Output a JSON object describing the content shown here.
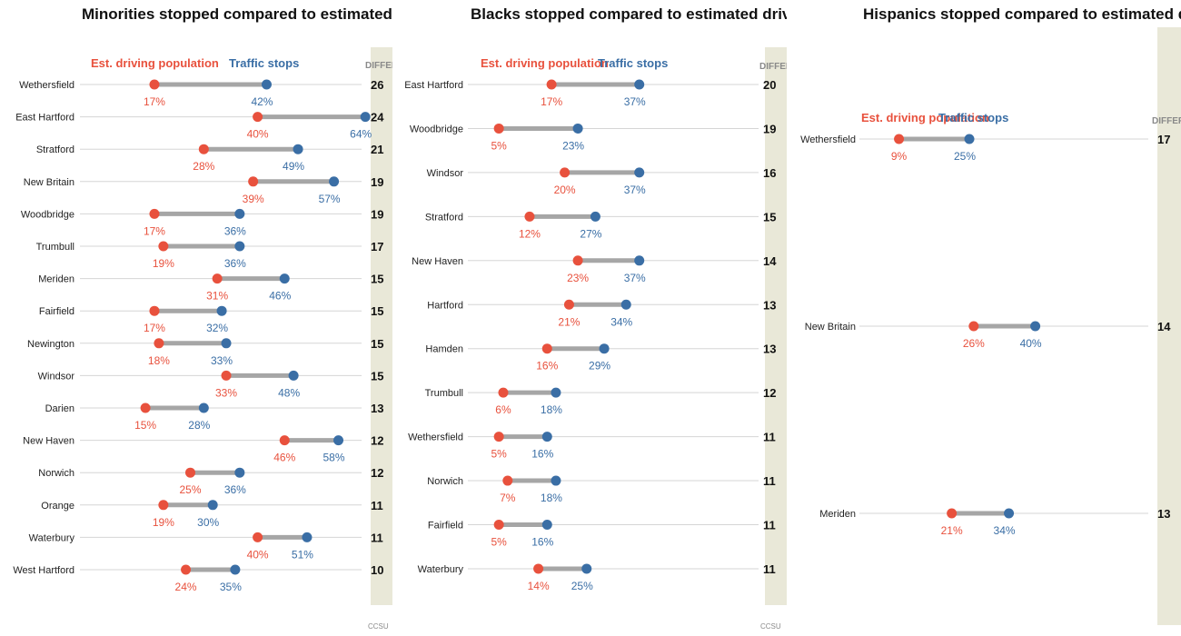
{
  "chart_data": [
    {
      "type": "dumbbell",
      "title": "Minorities stopped compared to estimated driving population",
      "series": [
        {
          "name": "Est. driving population",
          "color": "#e8513d"
        },
        {
          "name": "Traffic stops",
          "color": "#3a6ea5"
        }
      ],
      "difference_header": "DIFFERENCE",
      "source": "CCSU",
      "categories": [
        "Wethersfield",
        "East Hartford",
        "Stratford",
        "New Britain",
        "Woodbridge",
        "Trumbull",
        "Meriden",
        "Fairfield",
        "Newington",
        "Windsor",
        "Darien",
        "New Haven",
        "Norwich",
        "Orange",
        "Waterbury",
        "West Hartford"
      ],
      "driving_population": [
        17,
        40,
        28,
        39,
        17,
        19,
        31,
        17,
        18,
        33,
        15,
        46,
        25,
        19,
        40,
        24
      ],
      "traffic_stops": [
        42,
        64,
        49,
        57,
        36,
        36,
        46,
        32,
        33,
        48,
        28,
        58,
        36,
        30,
        51,
        35
      ],
      "difference": [
        26,
        24,
        21,
        19,
        19,
        17,
        15,
        15,
        15,
        15,
        13,
        12,
        12,
        11,
        11,
        10
      ],
      "value_suffix": "%",
      "xlim": [
        0,
        100
      ]
    },
    {
      "type": "dumbbell",
      "title": "Blacks stopped compared to estimated driving population",
      "series": [
        {
          "name": "Est. driving population",
          "color": "#e8513d"
        },
        {
          "name": "Traffic stops",
          "color": "#3a6ea5"
        }
      ],
      "difference_header": "DIFFERENCE",
      "source": "CCSU",
      "categories": [
        "East Hartford",
        "Woodbridge",
        "Windsor",
        "Stratford",
        "New Haven",
        "Hartford",
        "Hamden",
        "Trumbull",
        "Wethersfield",
        "Norwich",
        "Fairfield",
        "Waterbury"
      ],
      "driving_population": [
        17,
        5,
        20,
        12,
        23,
        21,
        16,
        6,
        5,
        7,
        5,
        14
      ],
      "traffic_stops": [
        37,
        23,
        37,
        27,
        37,
        34,
        29,
        18,
        16,
        18,
        16,
        25
      ],
      "difference": [
        20,
        19,
        16,
        15,
        14,
        13,
        13,
        12,
        11,
        11,
        11,
        11
      ],
      "value_suffix": "%",
      "xlim": [
        0,
        100
      ]
    },
    {
      "type": "dumbbell",
      "title": "Hispanics stopped compared to estimated driving population",
      "series": [
        {
          "name": "Est. driving population",
          "color": "#e8513d"
        },
        {
          "name": "Traffic stops",
          "color": "#3a6ea5"
        }
      ],
      "difference_header": "DIFFERENCE",
      "categories": [
        "Wethersfield",
        "New Britain",
        "Meriden"
      ],
      "driving_population": [
        9,
        26,
        21
      ],
      "traffic_stops": [
        25,
        40,
        34
      ],
      "difference": [
        17,
        14,
        13
      ],
      "value_suffix": "%",
      "xlim": [
        0,
        100
      ]
    }
  ]
}
